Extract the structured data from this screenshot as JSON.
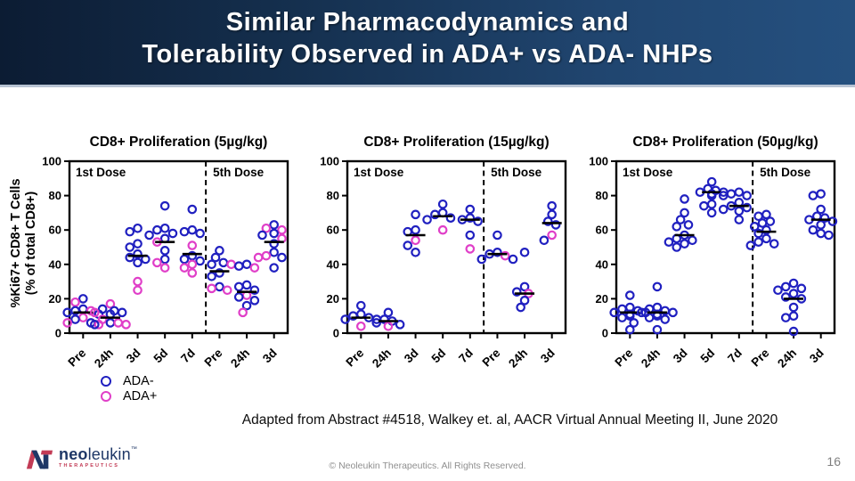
{
  "slide": {
    "title_line1": "Similar Pharmacodynamics and",
    "title_line2": "Tolerability Observed in ADA+ vs ADA- NHPs",
    "attribution": "Adapted from Abstract #4518, Walkey et. al, AACR Virtual Annual Meeting II, June 2020",
    "copyright": "© Neoleukin Therapeutics. All Rights Reserved.",
    "page_number": "16"
  },
  "y_axis": {
    "line1": "%Ki67+ CD8+ T Cells",
    "line2": "(% of total CD8+)"
  },
  "legend": [
    {
      "label": "ADA-",
      "color": "#2020C0"
    },
    {
      "label": "ADA+",
      "color": "#E03FC8"
    }
  ],
  "colors": {
    "ada_negative": "#2020C0",
    "ada_positive": "#E03FC8",
    "median": "#000000",
    "header_left": "#0c1c33",
    "header_right": "#25507f",
    "brand_navy": "#1e3766",
    "brand_red": "#c23b55"
  },
  "logo": {
    "brand_bold": "neo",
    "brand_light": "leukin",
    "trademark": "™",
    "subtext": "THERAPEUTICS"
  },
  "chart_data": [
    {
      "type": "scatter",
      "title": "CD8+ Proliferation (5µg/kg)",
      "categories": [
        "Pre",
        "24h",
        "3d",
        "5d",
        "7d",
        "Pre",
        "24h",
        "3d"
      ],
      "section_labels": [
        "1st Dose",
        "5th Dose"
      ],
      "divider_after": 4,
      "ylim": [
        0,
        100
      ],
      "yticks": [
        0,
        20,
        40,
        60,
        80,
        100
      ],
      "ylabel": "%Ki67+ CD8+ T Cells (% of total CD8+)",
      "series": [
        {
          "name": "ADA-",
          "color": "#2020C0",
          "values_by_group": [
            [
              20,
              14,
              13,
              12,
              11,
              8,
              6
            ],
            [
              14,
              13,
              12,
              11,
              6,
              5
            ],
            [
              61,
              59,
              52,
              50,
              46,
              44,
              43,
              41
            ],
            [
              74,
              61,
              60,
              58,
              57,
              55,
              48,
              43
            ],
            [
              72,
              60,
              59,
              58,
              45,
              43,
              42
            ],
            [
              48,
              44,
              41,
              40,
              35,
              33,
              27
            ],
            [
              40,
              39,
              28,
              27,
              25,
              21,
              19,
              16
            ],
            [
              63,
              58,
              57,
              52,
              47,
              44,
              38
            ]
          ]
        },
        {
          "name": "ADA+",
          "color": "#E03FC8",
          "values_by_group": [
            [
              18,
              13,
              9,
              6,
              5
            ],
            [
              17,
              12,
              8,
              6,
              5
            ],
            [
              30,
              25
            ],
            [
              53,
              41,
              38
            ],
            [
              51,
              40,
              38,
              35
            ],
            [
              40,
              26,
              25
            ],
            [
              38,
              22,
              12
            ],
            [
              61,
              60,
              55,
              45,
              44
            ]
          ]
        }
      ],
      "medians": [
        12,
        9,
        45,
        53,
        46,
        36,
        24,
        53
      ]
    },
    {
      "type": "scatter",
      "title": "CD8+ Proliferation (15µg/kg)",
      "categories": [
        "Pre",
        "24h",
        "3d",
        "5d",
        "7d",
        "Pre",
        "24h",
        "3d"
      ],
      "section_labels": [
        "1st Dose",
        "5th Dose"
      ],
      "divider_after": 4,
      "ylim": [
        0,
        100
      ],
      "yticks": [
        0,
        20,
        40,
        60,
        80,
        100
      ],
      "ylabel": "%Ki67+ CD8+ T Cells (% of total CD8+)",
      "series": [
        {
          "name": "ADA-",
          "color": "#2020C0",
          "values_by_group": [
            [
              16,
              11,
              10,
              9,
              8,
              8
            ],
            [
              12,
              8,
              7,
              6,
              5
            ],
            [
              69,
              60,
              59,
              51,
              47
            ],
            [
              75,
              70,
              69,
              67,
              66
            ],
            [
              72,
              67,
              66,
              65,
              57
            ],
            [
              57,
              47,
              46,
              43,
              43
            ],
            [
              47,
              27,
              24,
              19,
              15
            ],
            [
              74,
              69,
              65,
              63,
              54
            ]
          ]
        },
        {
          "name": "ADA+",
          "color": "#E03FC8",
          "values_by_group": [
            [
              4
            ],
            [
              4
            ],
            [
              54
            ],
            [
              60
            ],
            [
              49
            ],
            [
              45
            ],
            [
              23
            ],
            [
              57
            ]
          ]
        }
      ],
      "medians": [
        9,
        7,
        57,
        68,
        66,
        46,
        23,
        64
      ]
    },
    {
      "type": "scatter",
      "title": "CD8+ Proliferation (50µg/kg)",
      "categories": [
        "Pre",
        "24h",
        "3d",
        "5d",
        "7d",
        "Pre",
        "24h",
        "3d"
      ],
      "section_labels": [
        "1st Dose",
        "5th Dose"
      ],
      "divider_after": 4,
      "ylim": [
        0,
        100
      ],
      "yticks": [
        0,
        20,
        40,
        60,
        80,
        100
      ],
      "ylabel": "%Ki67+ CD8+ T Cells (% of total CD8+)",
      "series": [
        {
          "name": "ADA-",
          "color": "#2020C0",
          "values_by_group": [
            [
              22,
              15,
              14,
              13,
              12,
              12,
              11,
              10,
              9,
              6,
              2
            ],
            [
              27,
              15,
              14,
              13,
              12,
              12,
              11,
              10,
              9,
              8,
              2
            ],
            [
              78,
              70,
              66,
              63,
              62,
              57,
              55,
              54,
              53,
              52,
              50
            ],
            [
              88,
              84,
              83,
              82,
              82,
              81,
              80,
              75,
              74,
              70
            ],
            [
              82,
              81,
              80,
              80,
              76,
              74,
              73,
              72,
              71,
              66
            ],
            [
              69,
              68,
              65,
              64,
              62,
              60,
              58,
              55,
              53,
              52,
              51
            ],
            [
              29,
              27,
              26,
              25,
              23,
              21,
              20,
              15,
              10,
              9,
              1
            ],
            [
              81,
              80,
              72,
              68,
              67,
              66,
              65,
              63,
              60,
              58,
              57
            ]
          ]
        },
        {
          "name": "ADA+",
          "color": "#E03FC8",
          "values_by_group": [
            [],
            [],
            [],
            [],
            [],
            [],
            [],
            []
          ]
        }
      ],
      "medians": [
        12,
        12,
        57,
        82,
        74,
        59,
        20,
        66
      ]
    }
  ]
}
